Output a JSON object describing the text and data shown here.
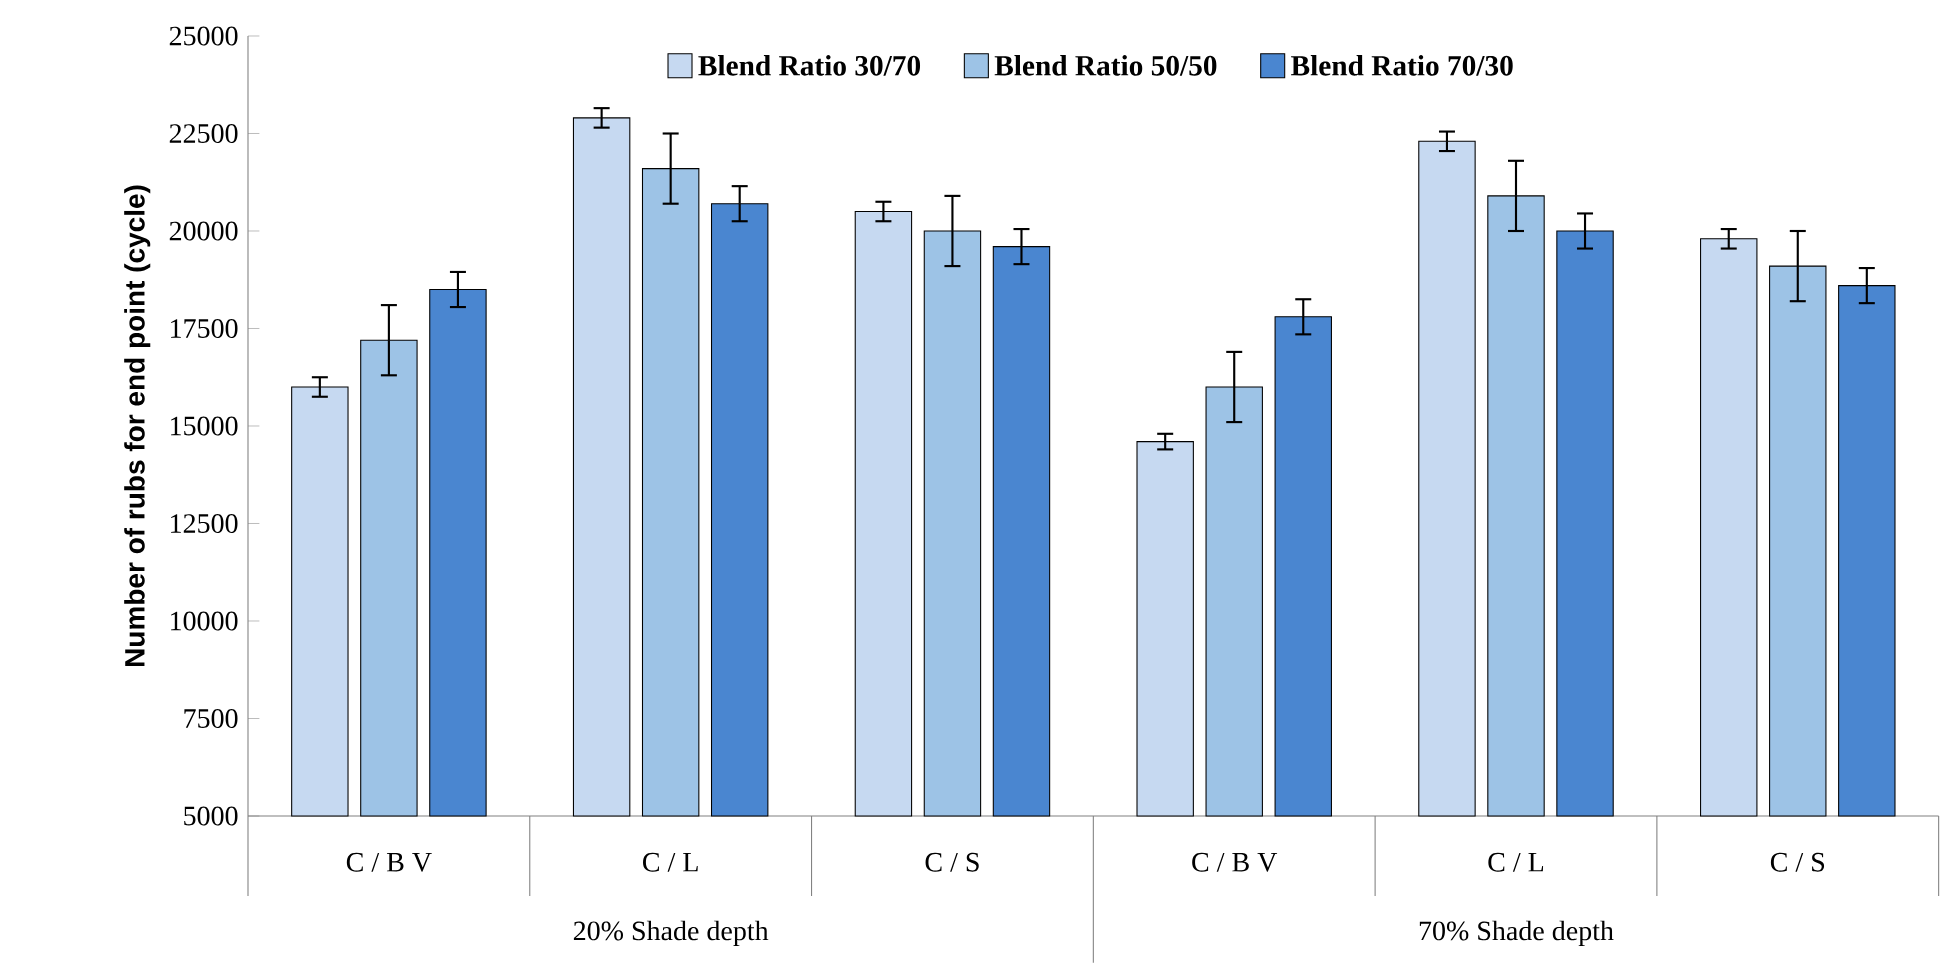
{
  "chart_data": {
    "type": "bar",
    "ylabel": "Number of rubs for end point (cycle)",
    "categories": [
      "C / B V",
      "C / L",
      "C / S",
      "C / B V",
      "C / L",
      "C / S"
    ],
    "annotations": [
      "20% Shade depth",
      "70% Shade depth"
    ],
    "series": [
      {
        "name": "Blend Ratio 30/70",
        "color": "#c6d9f1",
        "values": [
          16000,
          22900,
          20500,
          14600,
          22300,
          19800
        ],
        "errors": [
          250,
          250,
          250,
          200,
          250,
          250
        ]
      },
      {
        "name": "Blend Ratio 50/50",
        "color": "#9dc3e6",
        "values": [
          17200,
          21600,
          20000,
          16000,
          20900,
          19100
        ],
        "errors": [
          900,
          900,
          900,
          900,
          900,
          900
        ]
      },
      {
        "name": "Blend Ratio 70/30",
        "color": "#4a86d0",
        "values": [
          18500,
          20700,
          19600,
          17800,
          20000,
          18600
        ],
        "errors": [
          450,
          450,
          450,
          450,
          450,
          450
        ]
      }
    ],
    "ylim": [
      5000,
      25000
    ],
    "yticks": [
      5000,
      7500,
      10000,
      12500,
      15000,
      17500,
      20000,
      22500,
      25000
    ],
    "grid": false,
    "legend": "top"
  }
}
